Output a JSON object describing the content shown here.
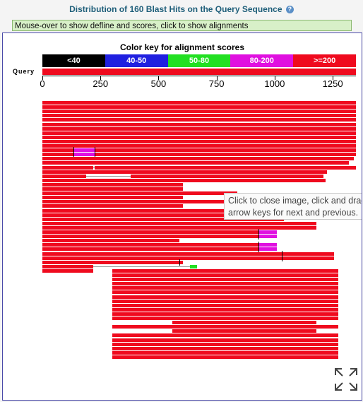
{
  "header": {
    "title": "Distribution of 160 Blast Hits on the Query Sequence",
    "help_icon": "help-icon"
  },
  "info_bar": {
    "text": "Mouse-over to show defline and scores, click to show alignments"
  },
  "color_key": {
    "title": "Color key for alignment scores",
    "ranges": [
      {
        "label": "<40",
        "color": "#000000"
      },
      {
        "label": "40-50",
        "color": "#2020e0"
      },
      {
        "label": "50-80",
        "color": "#22e022"
      },
      {
        "label": "80-200",
        "color": "#e010e0"
      },
      {
        "label": ">=200",
        "color": "#ef0a1e"
      }
    ]
  },
  "query": {
    "label": "Query",
    "length": 1350,
    "ticks": [
      "0",
      "250",
      "500",
      "750",
      "1000",
      "1250"
    ],
    "tick_values": [
      0,
      250,
      500,
      750,
      1000,
      1250
    ]
  },
  "tooltip": {
    "line1": "Click to close image, click and drag to move. Use",
    "line2": "arrow keys for next and previous."
  },
  "expand_icon": "expand-fullscreen-icon",
  "hits": [
    {
      "segs": [
        [
          0,
          1350,
          "r"
        ]
      ]
    },
    {
      "segs": [
        [
          0,
          1350,
          "r"
        ]
      ]
    },
    {
      "segs": [
        [
          0,
          1350,
          "r"
        ]
      ]
    },
    {
      "segs": [
        [
          0,
          1350,
          "r"
        ]
      ]
    },
    {
      "segs": [
        [
          0,
          1350,
          "r"
        ]
      ]
    },
    {
      "segs": [
        [
          0,
          1350,
          "r"
        ]
      ]
    },
    {
      "segs": [
        [
          0,
          1350,
          "r"
        ]
      ]
    },
    {
      "segs": [
        [
          0,
          1350,
          "r"
        ]
      ]
    },
    {
      "segs": [
        [
          0,
          1350,
          "r"
        ]
      ]
    },
    {
      "segs": [
        [
          0,
          1350,
          "r"
        ]
      ]
    },
    {
      "segs": [
        [
          0,
          1350,
          "r"
        ]
      ]
    },
    {
      "segs": [
        [
          0,
          135,
          "r"
        ],
        [
          135,
          225,
          "m"
        ],
        [
          225,
          1350,
          "r"
        ]
      ],
      "marks": [
        135,
        225
      ]
    },
    {
      "segs": [
        [
          0,
          135,
          "r"
        ],
        [
          135,
          225,
          "m"
        ],
        [
          225,
          1350,
          "r"
        ]
      ],
      "marks": [
        135,
        225
      ]
    },
    {
      "segs": [
        [
          0,
          1340,
          "r"
        ]
      ]
    },
    {
      "segs": [
        [
          0,
          1320,
          "r"
        ]
      ]
    },
    {
      "segs": [
        [
          0,
          220,
          "r"
        ],
        [
          225,
          1350,
          "r"
        ]
      ],
      "gaps": [
        [
          220,
          225
        ]
      ]
    },
    {
      "segs": [
        [
          0,
          1225,
          "r"
        ]
      ]
    },
    {
      "segs": [
        [
          0,
          190,
          "r"
        ],
        [
          380,
          1210,
          "r"
        ]
      ],
      "gaps": [
        [
          190,
          380
        ]
      ]
    },
    {
      "segs": [
        [
          0,
          1220,
          "r"
        ]
      ]
    },
    {
      "segs": [
        [
          0,
          605,
          "r"
        ]
      ]
    },
    {
      "segs": [
        [
          0,
          605,
          "r"
        ]
      ]
    },
    {
      "segs": [
        [
          0,
          840,
          "r"
        ]
      ]
    },
    {
      "segs": [
        [
          0,
          605,
          "r"
        ]
      ]
    },
    {
      "segs": [
        [
          0,
          850,
          "r"
        ]
      ]
    },
    {
      "segs": [
        [
          0,
          605,
          "r"
        ]
      ]
    },
    {
      "segs": [
        [
          0,
          1220,
          "r"
        ]
      ]
    },
    {
      "segs": [
        [
          0,
          800,
          "r"
        ]
      ]
    },
    {
      "segs": [
        [
          0,
          1040,
          "r"
        ]
      ]
    },
    {
      "segs": [
        [
          0,
          1180,
          "r"
        ]
      ]
    },
    {
      "segs": [
        [
          0,
          1180,
          "r"
        ]
      ]
    },
    {
      "segs": [
        [
          0,
          930,
          "r"
        ],
        [
          930,
          1010,
          "m"
        ]
      ],
      "marks": [
        930
      ]
    },
    {
      "segs": [
        [
          0,
          930,
          "r"
        ],
        [
          930,
          1010,
          "m"
        ]
      ],
      "marks": [
        930
      ]
    },
    {
      "segs": [
        [
          0,
          590,
          "r"
        ]
      ]
    },
    {
      "segs": [
        [
          0,
          930,
          "r"
        ],
        [
          930,
          1010,
          "m"
        ]
      ],
      "marks": [
        930
      ]
    },
    {
      "segs": [
        [
          0,
          930,
          "r"
        ],
        [
          930,
          1010,
          "m"
        ]
      ],
      "marks": [
        930
      ]
    },
    {
      "segs": [
        [
          0,
          1255,
          "r"
        ]
      ],
      "marks": [
        1030
      ]
    },
    {
      "segs": [
        [
          0,
          1255,
          "r"
        ]
      ],
      "marks": [
        1030
      ]
    },
    {
      "segs": [
        [
          0,
          605,
          "r"
        ]
      ],
      "marks": [
        590
      ]
    },
    {
      "segs": [
        [
          0,
          220,
          "r"
        ],
        [
          635,
          665,
          "g"
        ]
      ],
      "gaps": [
        [
          220,
          635
        ]
      ]
    },
    {
      "segs": [
        [
          0,
          220,
          "r"
        ],
        [
          300,
          1275,
          "r"
        ]
      ]
    },
    {
      "segs": [
        [
          300,
          1275,
          "r"
        ]
      ]
    },
    {
      "segs": [
        [
          300,
          1275,
          "r"
        ]
      ]
    },
    {
      "segs": [
        [
          300,
          1275,
          "r"
        ]
      ]
    },
    {
      "segs": [
        [
          300,
          1275,
          "r"
        ]
      ]
    },
    {
      "segs": [
        [
          300,
          1275,
          "r"
        ]
      ]
    },
    {
      "segs": [
        [
          300,
          1275,
          "r"
        ]
      ]
    },
    {
      "segs": [
        [
          300,
          1275,
          "r"
        ]
      ]
    },
    {
      "segs": [
        [
          300,
          1275,
          "r"
        ]
      ]
    },
    {
      "segs": [
        [
          300,
          1275,
          "r"
        ]
      ]
    },
    {
      "segs": [
        [
          300,
          1275,
          "r"
        ]
      ]
    },
    {
      "segs": [
        [
          300,
          1275,
          "r"
        ]
      ]
    },
    {
      "segs": [
        [
          560,
          1180,
          "r"
        ]
      ]
    },
    {
      "segs": [
        [
          300,
          1275,
          "r"
        ]
      ]
    },
    {
      "segs": [
        [
          560,
          1180,
          "r"
        ]
      ]
    },
    {
      "segs": [
        [
          300,
          1275,
          "r"
        ]
      ]
    },
    {
      "segs": [
        [
          300,
          1275,
          "r"
        ]
      ]
    },
    {
      "segs": [
        [
          300,
          1275,
          "r"
        ]
      ]
    },
    {
      "segs": [
        [
          300,
          1275,
          "r"
        ]
      ]
    },
    {
      "segs": [
        [
          300,
          1275,
          "r"
        ]
      ]
    },
    {
      "segs": [
        [
          300,
          1275,
          "r"
        ]
      ]
    }
  ]
}
